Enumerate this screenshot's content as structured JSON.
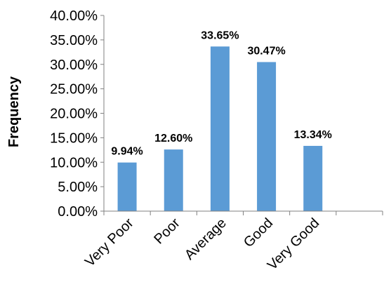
{
  "chart_data": {
    "type": "bar",
    "categories": [
      "Very Poor",
      "Poor",
      "Average",
      "Good",
      "Very Good",
      ""
    ],
    "values": [
      9.94,
      12.6,
      33.65,
      30.47,
      13.34,
      null
    ],
    "data_labels": [
      "9.94%",
      "12.60%",
      "33.65%",
      "30.47%",
      "13.34%",
      ""
    ],
    "y_ticks": [
      "0.00%",
      "5.00%",
      "10.00%",
      "15.00%",
      "20.00%",
      "25.00%",
      "30.00%",
      "35.00%",
      "40.00%"
    ],
    "ylim": [
      0,
      40
    ],
    "ylabel": "Frequency",
    "xlabel": "",
    "grid": false,
    "legend": "none",
    "bar_color": "#5B9BD5",
    "axis_color": "#808080"
  }
}
